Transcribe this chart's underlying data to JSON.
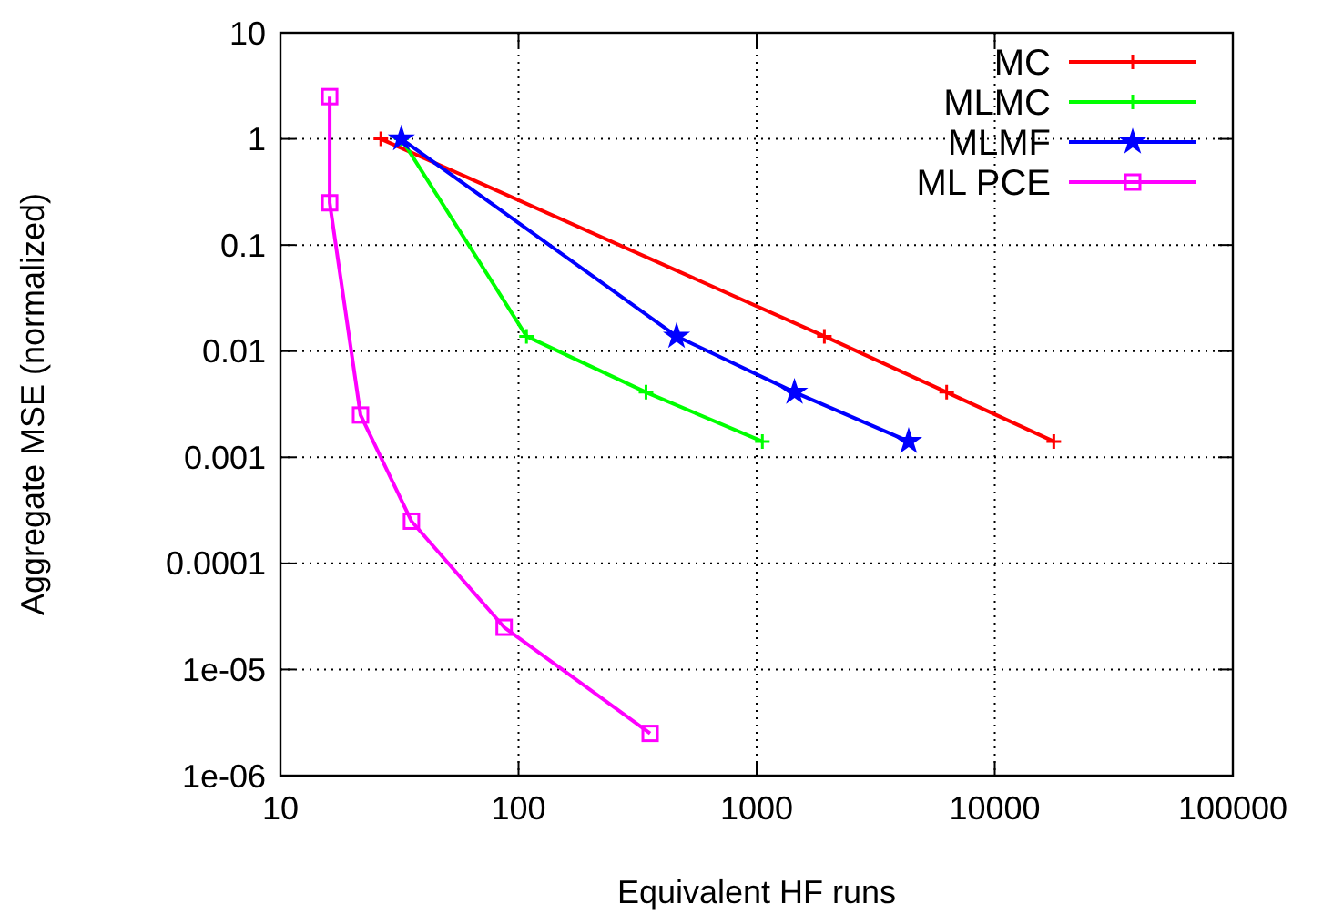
{
  "chart_data": {
    "type": "line",
    "xlabel": "Equivalent HF runs",
    "ylabel": "Aggregate MSE (normalized)",
    "log": "xy",
    "grid": true,
    "legend": "top right",
    "xlim": [
      10,
      100000
    ],
    "xticks": [
      10,
      100,
      1000,
      10000,
      100000
    ],
    "ylim": [
      1e-06,
      10
    ],
    "yticks": [
      {
        "value": 1e-06,
        "label": "1e-06"
      },
      {
        "value": 1e-05,
        "label": "1e-05"
      },
      0.0001,
      0.001,
      0.01,
      0.1,
      1,
      10
    ],
    "series": [
      {
        "name": "MC",
        "color": "#ff0000",
        "marker": "cross",
        "x": [
          26.4,
          1925,
          6280,
          17700
        ],
        "values": [
          1,
          0.0138,
          0.0041,
          0.00141
        ]
      },
      {
        "name": "MLMC",
        "color": "#00ff00",
        "marker": "cross",
        "x": [
          32.2,
          108,
          343,
          1057
        ],
        "values": [
          1,
          0.0138,
          0.0041,
          0.00141
        ]
      },
      {
        "name": "MLMF",
        "color": "#0000ff",
        "marker": "star",
        "x": [
          32.2,
          461,
          1442,
          4350
        ],
        "values": [
          1,
          0.0138,
          0.0041,
          0.00141
        ]
      },
      {
        "name": "ML PCE",
        "color": "#ff00ff",
        "marker": "square",
        "x": [
          16.1,
          16.1,
          21.7,
          35.5,
          87,
          357
        ],
        "values": [
          2.5,
          0.25,
          0.0025,
          0.00025,
          2.5e-05,
          2.5e-06
        ]
      }
    ]
  }
}
